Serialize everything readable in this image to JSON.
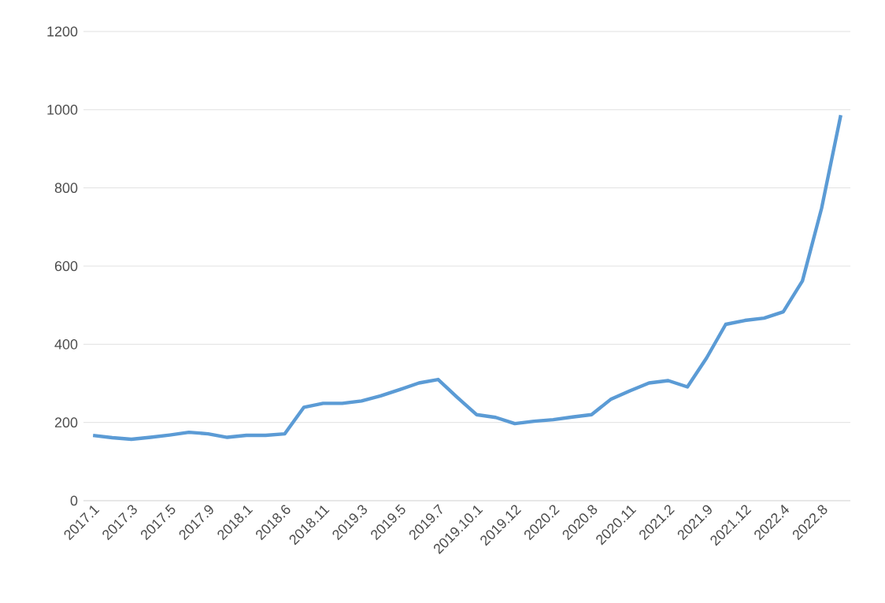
{
  "chart_data": {
    "type": "line",
    "categories": [
      "2017.1",
      null,
      "2017.3",
      null,
      "2017.5",
      null,
      "2017.9",
      null,
      "2018.1",
      null,
      "2018.6",
      null,
      "2018.11",
      null,
      "2019.3",
      null,
      "2019.5",
      null,
      "2019.7",
      null,
      "2019.10.1",
      null,
      "2019.12",
      null,
      "2020.2",
      null,
      "2020.8",
      null,
      "2020.11",
      null,
      "2021.2",
      null,
      "2021.9",
      null,
      "2021.12",
      null,
      "2022.4",
      null,
      "2022.8",
      null
    ],
    "series": [
      {
        "color": "#5b9bd5",
        "values": [
          167,
          161,
          157,
          162,
          168,
          175,
          171,
          162,
          167,
          167,
          171,
          239,
          249,
          249,
          255,
          268,
          284,
          301,
          310,
          264,
          220,
          213,
          197,
          203,
          207,
          214,
          220,
          259,
          281,
          301,
          307,
          291,
          365,
          451,
          461,
          467,
          483,
          562,
          748,
          986
        ]
      }
    ],
    "ylim": [
      0,
      1200
    ],
    "yticks": [
      0,
      200,
      400,
      600,
      800,
      1000,
      1200
    ],
    "grid": "y",
    "marker": "none",
    "line_style": "solid"
  }
}
